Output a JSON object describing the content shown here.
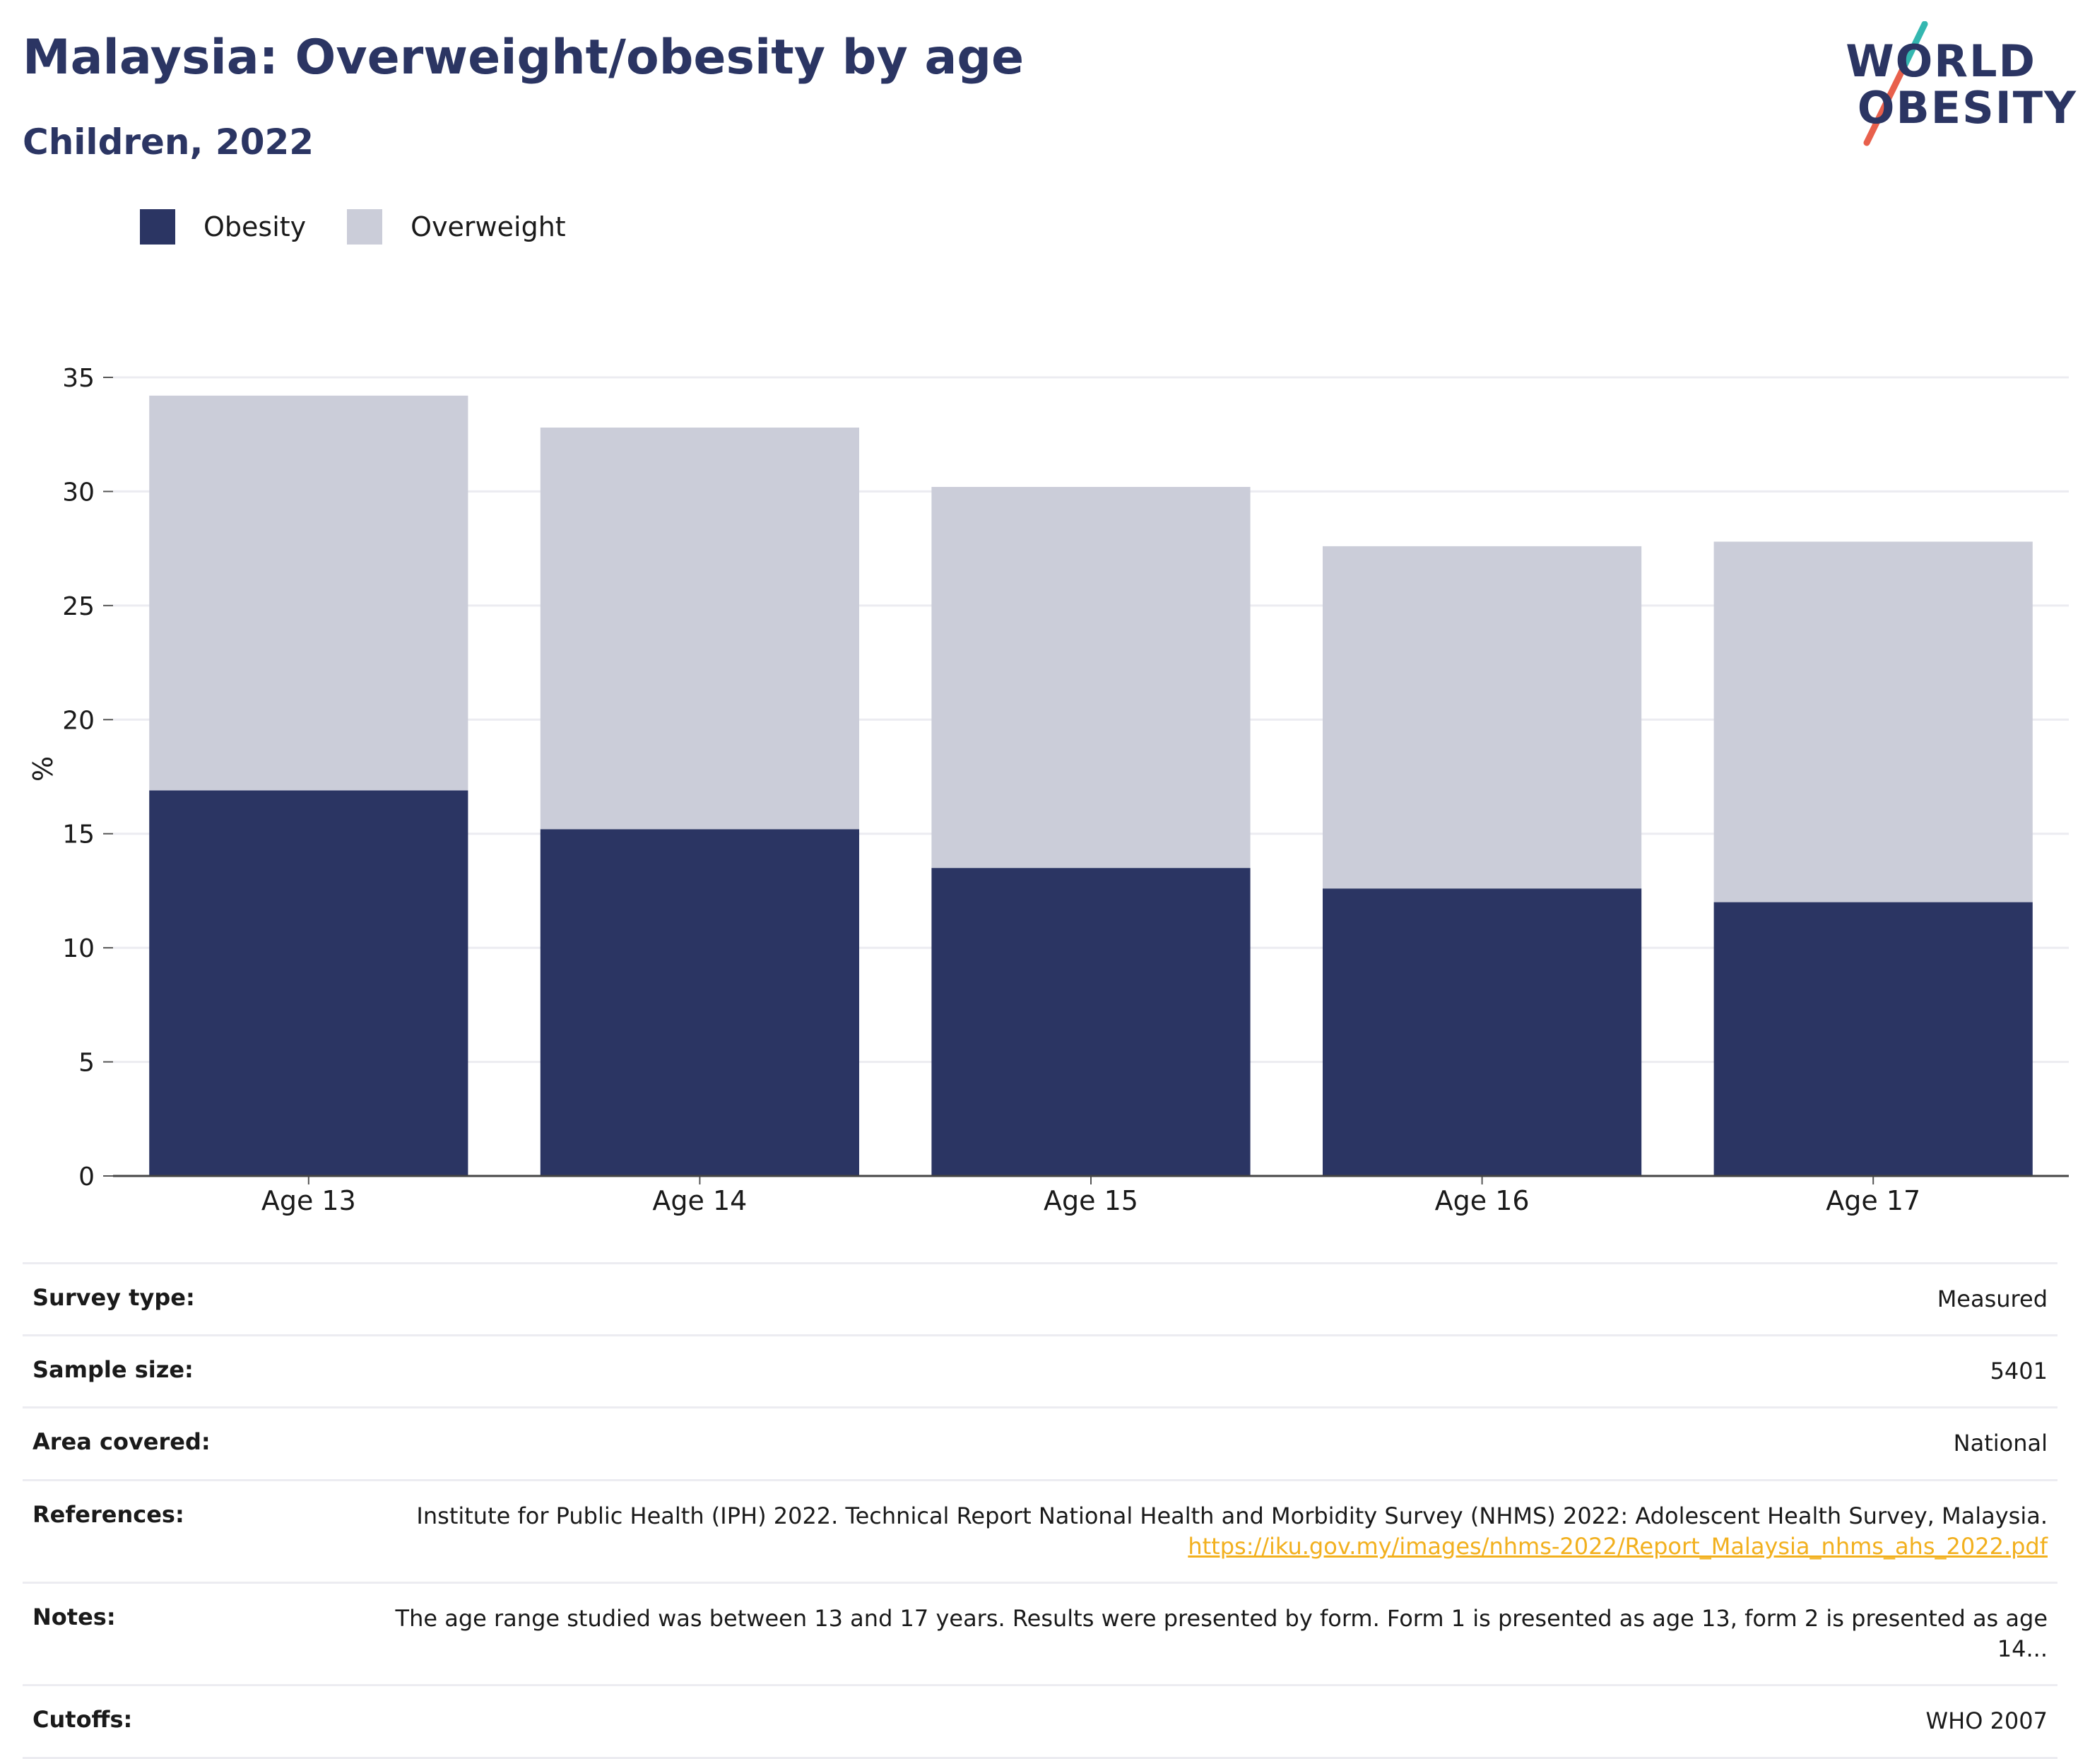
{
  "header": {
    "title": "Malaysia: Overweight/obesity by age",
    "subtitle": "Children, 2022"
  },
  "logo": {
    "line1": "WORLD",
    "line2": "OBESITY",
    "text_color": "#2b3563",
    "slash_colors": [
      "#34b7b0",
      "#e8604c"
    ]
  },
  "legend": [
    {
      "label": "Obesity",
      "color": "#2b3563"
    },
    {
      "label": "Overweight",
      "color": "#cbcdd9"
    }
  ],
  "chart_data": {
    "type": "bar",
    "stacked": true,
    "categories": [
      "Age 13",
      "Age 14",
      "Age 15",
      "Age 16",
      "Age 17"
    ],
    "series": [
      {
        "name": "Obesity",
        "color": "#2b3563",
        "values": [
          16.9,
          15.2,
          13.5,
          12.6,
          12.0
        ]
      },
      {
        "name": "Overweight",
        "color": "#cbcdd9",
        "values": [
          17.3,
          17.6,
          16.7,
          15.0,
          15.8
        ]
      }
    ],
    "ylabel": "%",
    "xlabel": "",
    "ylim": [
      0,
      35
    ],
    "yticks": [
      0,
      5,
      10,
      15,
      20,
      25,
      30,
      35
    ],
    "grid": true,
    "legend_position": "top-left"
  },
  "info": [
    {
      "key": "Survey type:",
      "value": "Measured"
    },
    {
      "key": "Sample size:",
      "value": "5401"
    },
    {
      "key": "Area covered:",
      "value": "National"
    },
    {
      "key": "References:",
      "value": "Institute for Public Health (IPH) 2022. Technical Report National Health and Morbidity Survey (NHMS) 2022: Adolescent Health Survey, Malaysia.",
      "link": "https://iku.gov.my/images/nhms-2022/Report_Malaysia_nhms_ahs_2022.pdf"
    },
    {
      "key": "Notes:",
      "value": "The age range studied was between 13 and 17 years. Results were presented by form. Form 1 is presented as age 13, form 2 is presented as age 14..."
    },
    {
      "key": "Cutoffs:",
      "value": "WHO 2007"
    }
  ]
}
